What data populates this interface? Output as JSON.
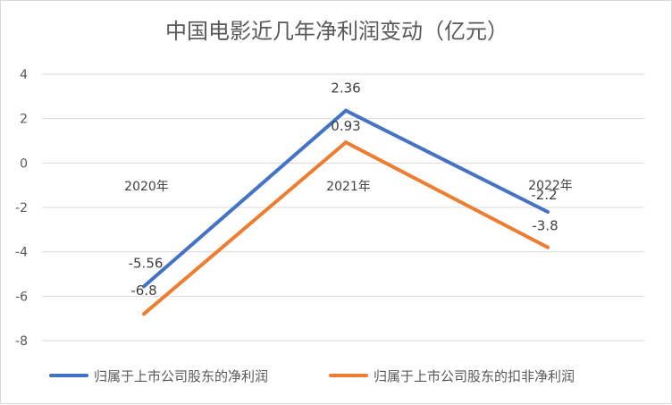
{
  "chart_data": {
    "type": "line",
    "title": "中国电影近几年净利润变动（亿元）",
    "categories": [
      "2020年",
      "2021年",
      "2022年"
    ],
    "ylim": [
      -8,
      4
    ],
    "yticks": [
      "4",
      "2",
      "0",
      "-2",
      "-4",
      "-6",
      "-8"
    ],
    "ytick_values": [
      4,
      2,
      0,
      -2,
      -4,
      -6,
      -8
    ],
    "series": [
      {
        "name": "归属于上市公司股东的净利润",
        "color": "#4472C4",
        "values": [
          -5.56,
          2.36,
          -2.2
        ],
        "labels": [
          "-5.56",
          "2.36",
          "-2.2"
        ]
      },
      {
        "name": "归属于上市公司股东的扣非净利润",
        "color": "#ED7D31",
        "values": [
          -6.8,
          0.93,
          -3.8
        ],
        "labels": [
          "-6.8",
          "0.93",
          "-3.8"
        ]
      }
    ],
    "grid": true,
    "legend": "bottom"
  }
}
